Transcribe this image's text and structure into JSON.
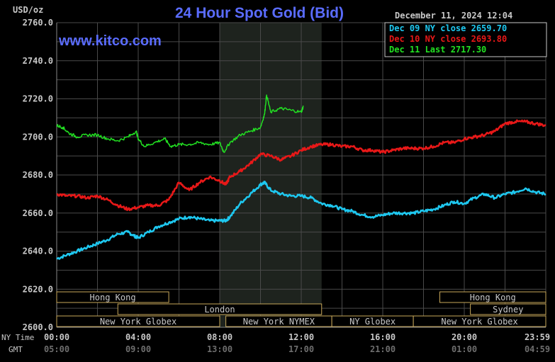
{
  "header": {
    "unit": "USD/oz",
    "title": "24 Hour Spot Gold (Bid)",
    "timestamp": "December 11, 2024 12:04",
    "watermark": "www.kitco.com"
  },
  "legend": [
    {
      "label": "Dec 09 NY close 2659.70",
      "color": "#1ec8f0"
    },
    {
      "label": "Dec 10 NY close 2693.80",
      "color": "#e81818"
    },
    {
      "label": "Dec 11 Last 2717.30",
      "color": "#22e022"
    }
  ],
  "axis": {
    "y_ticks": [
      "2760.0",
      "2740.0",
      "2720.0",
      "2700.0",
      "2680.0",
      "2660.0",
      "2640.0",
      "2620.0",
      "2600.0"
    ],
    "ny_time_label": "NY Time",
    "gmt_label": "GMT",
    "ny_ticks": [
      "00:00",
      "04:00",
      "08:00",
      "12:00",
      "16:00",
      "20:00",
      "23:59"
    ],
    "gmt_ticks": [
      "05:00",
      "09:00",
      "13:00",
      "17:00",
      "21:00",
      "01:00",
      "04:59"
    ]
  },
  "sessions": {
    "row1": [
      {
        "label": "Hong Kong"
      },
      {
        "label": "Hong Kong"
      }
    ],
    "row2": [
      {
        "label": "London"
      },
      {
        "label": "Sydney"
      }
    ],
    "row3": [
      {
        "label": "New York Globex"
      },
      {
        "label": "New York NYMEX"
      },
      {
        "label": "NY Globex"
      },
      {
        "label": "New York Globex"
      }
    ]
  },
  "chart_data": {
    "type": "line",
    "title": "24 Hour Spot Gold (Bid)",
    "ylabel": "USD/oz",
    "ylim": [
      2600,
      2760
    ],
    "xlim_hours": [
      0,
      24
    ],
    "shaded_session_hours": [
      8,
      13
    ],
    "series": [
      {
        "name": "Dec 09 NY close 2659.70",
        "color": "#1ec8f0",
        "points": [
          [
            0,
            2636
          ],
          [
            0.5,
            2638
          ],
          [
            1,
            2640
          ],
          [
            1.5,
            2642
          ],
          [
            2,
            2644
          ],
          [
            2.5,
            2646
          ],
          [
            3,
            2649
          ],
          [
            3.5,
            2650
          ],
          [
            3.8,
            2648
          ],
          [
            4,
            2647
          ],
          [
            4.5,
            2650
          ],
          [
            5,
            2653
          ],
          [
            5.5,
            2655
          ],
          [
            6,
            2657
          ],
          [
            6.5,
            2658
          ],
          [
            7,
            2657
          ],
          [
            7.5,
            2656
          ],
          [
            8,
            2656
          ],
          [
            8.3,
            2656
          ],
          [
            8.5,
            2658
          ],
          [
            9,
            2665
          ],
          [
            9.5,
            2670
          ],
          [
            10,
            2675
          ],
          [
            10.2,
            2676
          ],
          [
            10.5,
            2672
          ],
          [
            11,
            2670
          ],
          [
            11.5,
            2669
          ],
          [
            12,
            2669
          ],
          [
            12.5,
            2668
          ],
          [
            13,
            2665
          ],
          [
            13.5,
            2664
          ],
          [
            14,
            2662
          ],
          [
            14.5,
            2661
          ],
          [
            15,
            2659
          ],
          [
            15.5,
            2658
          ],
          [
            16,
            2659
          ],
          [
            16.5,
            2660
          ],
          [
            17,
            2660
          ],
          [
            17.5,
            2660
          ],
          [
            18,
            2661
          ],
          [
            18.5,
            2662
          ],
          [
            19,
            2664
          ],
          [
            19.5,
            2666
          ],
          [
            20,
            2665
          ],
          [
            20.5,
            2668
          ],
          [
            21,
            2670
          ],
          [
            21.5,
            2668
          ],
          [
            22,
            2670
          ],
          [
            22.5,
            2671
          ],
          [
            23,
            2673
          ],
          [
            23.5,
            2671
          ],
          [
            24,
            2670
          ]
        ]
      },
      {
        "name": "Dec 10 NY close 2693.80",
        "color": "#e81818",
        "points": [
          [
            0,
            2670
          ],
          [
            0.5,
            2669
          ],
          [
            1,
            2669
          ],
          [
            1.5,
            2668
          ],
          [
            2,
            2669
          ],
          [
            2.5,
            2667
          ],
          [
            3,
            2664
          ],
          [
            3.5,
            2662
          ],
          [
            4,
            2663
          ],
          [
            4.5,
            2664
          ],
          [
            5,
            2664
          ],
          [
            5.5,
            2667
          ],
          [
            6,
            2676
          ],
          [
            6.5,
            2672
          ],
          [
            7,
            2676
          ],
          [
            7.5,
            2679
          ],
          [
            8,
            2677
          ],
          [
            8.3,
            2675
          ],
          [
            8.5,
            2679
          ],
          [
            9,
            2682
          ],
          [
            9.5,
            2686
          ],
          [
            10,
            2691
          ],
          [
            10.5,
            2690
          ],
          [
            11,
            2688
          ],
          [
            11.5,
            2690
          ],
          [
            12,
            2693
          ],
          [
            12.5,
            2695
          ],
          [
            13,
            2696
          ],
          [
            13.5,
            2696
          ],
          [
            14,
            2695
          ],
          [
            14.5,
            2695
          ],
          [
            15,
            2693
          ],
          [
            15.5,
            2693
          ],
          [
            16,
            2692
          ],
          [
            16.5,
            2693
          ],
          [
            17,
            2694
          ],
          [
            17.5,
            2694
          ],
          [
            18,
            2694
          ],
          [
            18.5,
            2695
          ],
          [
            19,
            2697
          ],
          [
            19.5,
            2697
          ],
          [
            20,
            2699
          ],
          [
            20.5,
            2700
          ],
          [
            21,
            2701
          ],
          [
            21.5,
            2703
          ],
          [
            22,
            2707
          ],
          [
            22.5,
            2708
          ],
          [
            23,
            2708
          ],
          [
            23.5,
            2707
          ],
          [
            24,
            2706
          ]
        ]
      },
      {
        "name": "Dec 11 Last 2717.30",
        "color": "#22e022",
        "points": [
          [
            0,
            2706
          ],
          [
            0.3,
            2705
          ],
          [
            0.6,
            2702
          ],
          [
            1,
            2700
          ],
          [
            1.5,
            2701
          ],
          [
            2,
            2701
          ],
          [
            2.5,
            2699
          ],
          [
            3,
            2698
          ],
          [
            3.5,
            2700
          ],
          [
            3.9,
            2703
          ],
          [
            4,
            2699
          ],
          [
            4.3,
            2695
          ],
          [
            4.8,
            2697
          ],
          [
            5.3,
            2699
          ],
          [
            5.6,
            2695
          ],
          [
            6,
            2696
          ],
          [
            6.5,
            2696
          ],
          [
            7,
            2697
          ],
          [
            7.5,
            2696
          ],
          [
            8,
            2697
          ],
          [
            8.2,
            2692
          ],
          [
            8.5,
            2697
          ],
          [
            9,
            2701
          ],
          [
            9.5,
            2703
          ],
          [
            10,
            2705
          ],
          [
            10.2,
            2712
          ],
          [
            10.3,
            2722
          ],
          [
            10.5,
            2713
          ],
          [
            11,
            2715
          ],
          [
            11.5,
            2714
          ],
          [
            12,
            2713
          ],
          [
            12.1,
            2716
          ]
        ]
      }
    ]
  }
}
